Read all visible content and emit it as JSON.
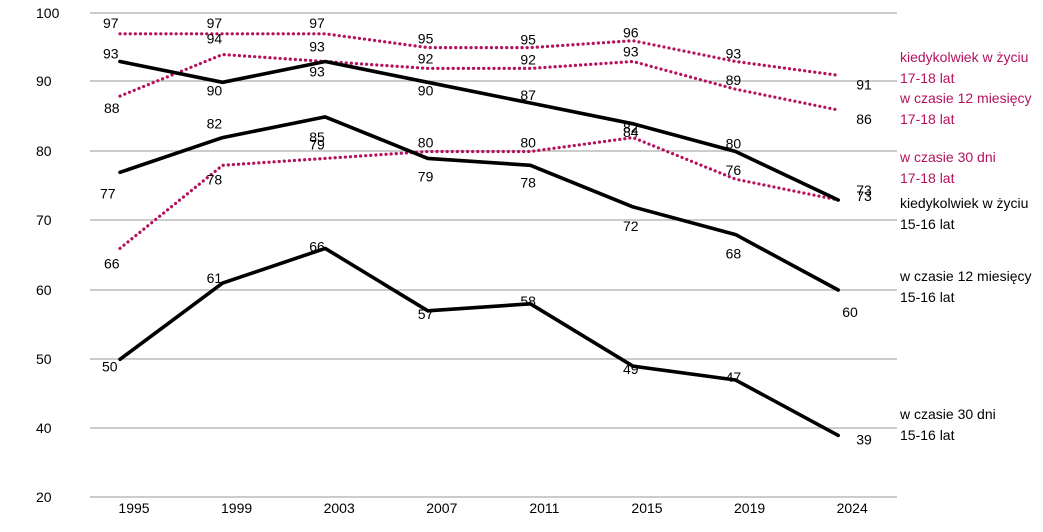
{
  "chart_data": {
    "type": "line",
    "categories": [
      "1995",
      "1999",
      "2003",
      "2007",
      "2011",
      "2015",
      "2019",
      "2024"
    ],
    "ylim": [
      20,
      100
    ],
    "yticks": [
      20,
      40,
      50,
      60,
      70,
      80,
      90,
      100
    ],
    "grid": true,
    "colors": {
      "black": "#000000",
      "magenta": "#b5125e",
      "grid": "#9a9a9a"
    },
    "series": [
      {
        "name": "kiedykolwiek w życiu 17-18 lat",
        "legend": [
          "kiedykolwiek w życiu",
          "17-18 lat"
        ],
        "style": "dotted",
        "color": "#b5125e",
        "values": [
          97,
          97,
          97,
          95,
          95,
          96,
          93,
          91
        ]
      },
      {
        "name": "w czasie 12 miesięcy 17-18 lat",
        "legend": [
          "w czasie 12 miesięcy",
          "17-18 lat"
        ],
        "style": "dotted",
        "color": "#b5125e",
        "values": [
          88,
          94,
          93,
          92,
          92,
          93,
          89,
          86
        ]
      },
      {
        "name": "w czasie 30 dni 17-18 lat",
        "legend": [
          "w czasie 30 dni",
          "17-18 lat"
        ],
        "style": "dotted",
        "color": "#b5125e",
        "values": [
          66,
          78,
          79,
          80,
          80,
          82,
          76,
          73
        ]
      },
      {
        "name": "kiedykolwiek w życiu 15-16 lat",
        "legend": [
          "kiedykolwiek w życiu",
          "15-16 lat"
        ],
        "style": "solid",
        "color": "#000000",
        "values": [
          93,
          90,
          93,
          90,
          87,
          84,
          80,
          73
        ]
      },
      {
        "name": "w czasie 12 miesięcy 15-16 lat",
        "legend": [
          "w czasie 12 miesięcy",
          "15-16 lat"
        ],
        "style": "solid",
        "color": "#000000",
        "values": [
          77,
          82,
          85,
          79,
          78,
          72,
          68,
          60
        ]
      },
      {
        "name": "w czasie 30 dni 15-16 lat",
        "legend": [
          "w czasie 30 dni",
          "15-16 lat"
        ],
        "style": "solid",
        "color": "#000000",
        "values": [
          50,
          61,
          66,
          57,
          58,
          49,
          47,
          39
        ]
      }
    ]
  }
}
